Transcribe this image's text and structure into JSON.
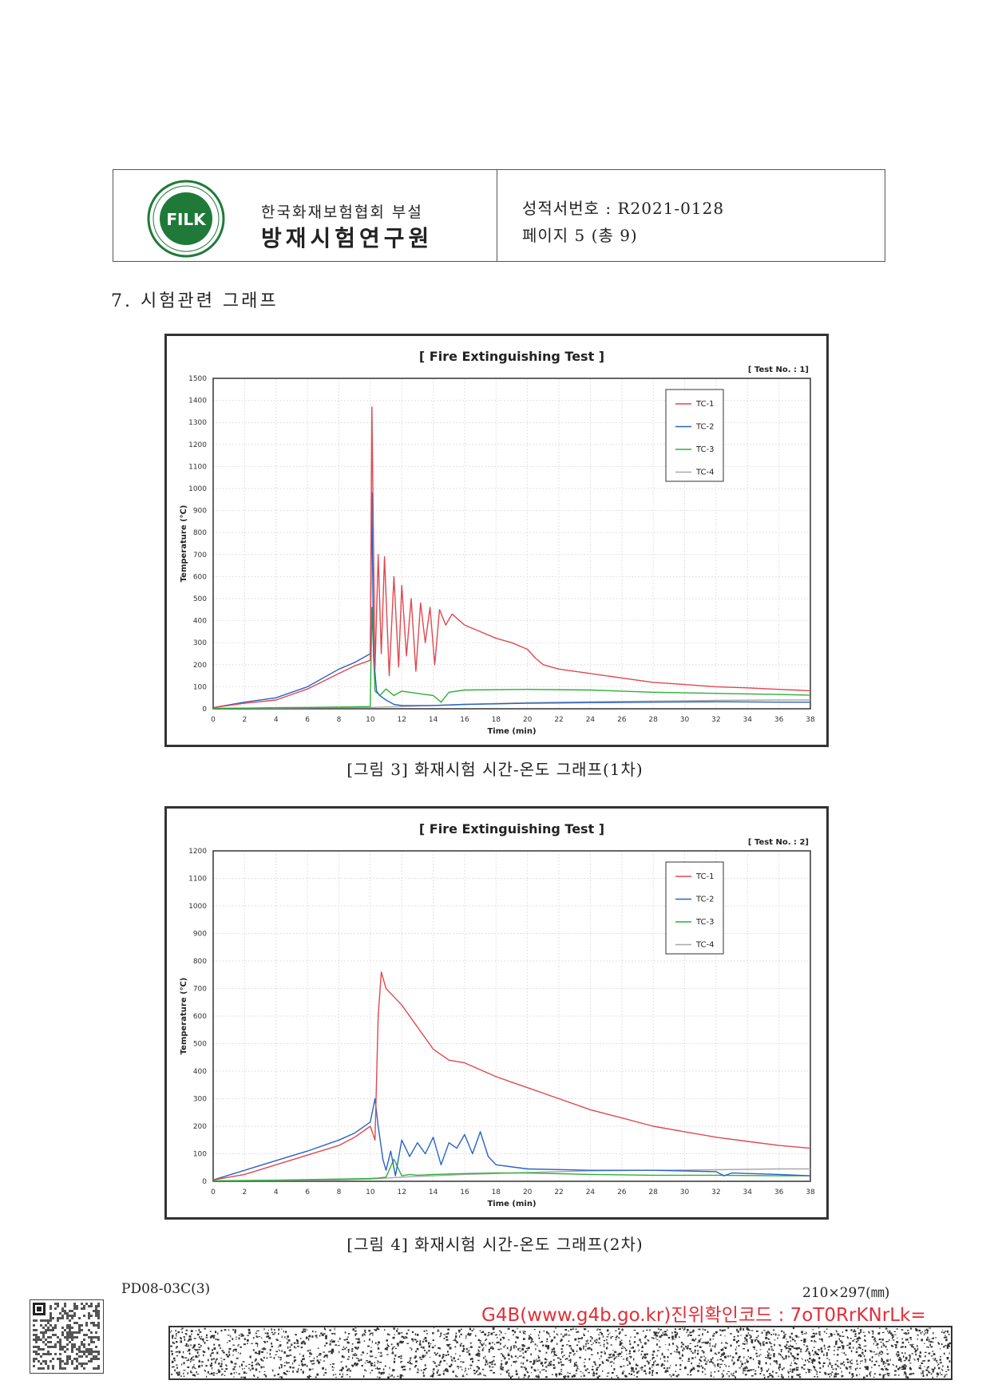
{
  "header": {
    "logo_text": "FILK",
    "logo_ring_text": "방화제품인증 · 방재시험연구원",
    "org_sub": "한국화재보험협회 부설",
    "org_main": "방재시험연구원",
    "report_no_label": "성적서번호 : R2021-0128",
    "page_label": "페이지  5  (총 9)"
  },
  "section_title": "7. 시험관련 그래프",
  "colors": {
    "tc1": "#e0484f",
    "tc2": "#2a62c8",
    "tc3": "#2fae3a",
    "tc4": "#a8a8a8",
    "verify": "#e0303a"
  },
  "chart_data": [
    {
      "type": "line",
      "title": "[ Fire Extinguishing Test ]",
      "test_label": "[ Test No. : 1]",
      "xlabel": "Time (min)",
      "ylabel": "Temperature (℃)",
      "xlim": [
        0,
        38
      ],
      "ylim": [
        0,
        1500
      ],
      "xticks": [
        0,
        2,
        4,
        6,
        8,
        10,
        12,
        14,
        16,
        18,
        20,
        22,
        24,
        26,
        28,
        30,
        32,
        34,
        36,
        38
      ],
      "yticks": [
        0,
        100,
        200,
        300,
        400,
        500,
        600,
        700,
        800,
        900,
        1000,
        1100,
        1200,
        1300,
        1400,
        1500
      ],
      "grid": true,
      "legend_position": "top-right",
      "series": [
        {
          "name": "TC-1",
          "x": [
            0,
            2,
            4,
            6,
            8,
            9,
            10,
            10.1,
            10.3,
            10.5,
            10.7,
            10.9,
            11.2,
            11.5,
            11.8,
            12,
            12.3,
            12.6,
            12.9,
            13.2,
            13.5,
            13.8,
            14.1,
            14.4,
            14.8,
            15.2,
            16,
            17,
            18,
            19,
            20,
            20.5,
            21,
            22,
            24,
            26,
            28,
            30,
            32,
            34,
            36,
            37,
            38
          ],
          "y": [
            5,
            25,
            40,
            90,
            160,
            195,
            220,
            1370,
            180,
            700,
            250,
            690,
            150,
            600,
            190,
            560,
            240,
            500,
            170,
            480,
            300,
            460,
            200,
            450,
            380,
            430,
            380,
            350,
            320,
            300,
            270,
            230,
            200,
            180,
            160,
            140,
            120,
            110,
            100,
            95,
            88,
            85,
            82
          ]
        },
        {
          "name": "TC-2",
          "x": [
            0,
            2,
            4,
            6,
            8,
            9,
            10,
            10.1,
            10.2,
            10.4,
            10.6,
            11,
            11.5,
            12,
            13,
            14,
            16,
            20,
            24,
            28,
            32,
            36,
            38
          ],
          "y": [
            5,
            30,
            50,
            100,
            180,
            210,
            250,
            980,
            240,
            80,
            60,
            40,
            20,
            15,
            15,
            15,
            20,
            25,
            28,
            30,
            32,
            30,
            30
          ]
        },
        {
          "name": "TC-3",
          "x": [
            0,
            2,
            4,
            6,
            8,
            10,
            10.1,
            10.3,
            10.6,
            11,
            11.5,
            12,
            13,
            14,
            14.5,
            15,
            16,
            20,
            24,
            28,
            32,
            36,
            38
          ],
          "y": [
            2,
            3,
            5,
            6,
            8,
            10,
            460,
            80,
            60,
            90,
            60,
            80,
            70,
            60,
            30,
            75,
            85,
            88,
            85,
            75,
            70,
            65,
            62
          ]
        },
        {
          "name": "TC-4",
          "x": [
            0,
            4,
            8,
            10,
            12,
            16,
            20,
            24,
            28,
            32,
            36,
            38
          ],
          "y": [
            2,
            3,
            5,
            6,
            10,
            20,
            28,
            32,
            35,
            38,
            40,
            40
          ]
        }
      ]
    },
    {
      "type": "line",
      "title": "[ Fire Extinguishing Test ]",
      "test_label": "[ Test No. : 2]",
      "xlabel": "Time (min)",
      "ylabel": "Temperature (℃)",
      "xlim": [
        0,
        38
      ],
      "ylim": [
        0,
        1200
      ],
      "xticks": [
        0,
        2,
        4,
        6,
        8,
        10,
        12,
        14,
        16,
        18,
        20,
        22,
        24,
        26,
        28,
        30,
        32,
        34,
        36,
        38
      ],
      "yticks": [
        0,
        100,
        200,
        300,
        400,
        500,
        600,
        700,
        800,
        900,
        1000,
        1100,
        1200
      ],
      "grid": true,
      "legend_position": "top-right",
      "series": [
        {
          "name": "TC-1",
          "x": [
            0,
            2,
            4,
            6,
            8,
            9,
            10,
            10.3,
            10.5,
            10.7,
            11,
            11.5,
            12,
            13,
            14,
            15,
            16,
            18,
            20,
            22,
            24,
            26,
            28,
            30,
            32,
            34,
            36,
            38
          ],
          "y": [
            5,
            25,
            60,
            95,
            130,
            160,
            200,
            150,
            600,
            760,
            700,
            670,
            640,
            560,
            480,
            440,
            430,
            380,
            340,
            300,
            260,
            230,
            200,
            180,
            160,
            145,
            130,
            120
          ]
        },
        {
          "name": "TC-2",
          "x": [
            0,
            2,
            4,
            6,
            8,
            9,
            10,
            10.3,
            10.5,
            10.8,
            11,
            11.3,
            11.6,
            12,
            12.5,
            13,
            13.5,
            14,
            14.5,
            15,
            15.5,
            16,
            16.5,
            17,
            17.5,
            18,
            20,
            24,
            28,
            32,
            32.5,
            33,
            36,
            38
          ],
          "y": [
            5,
            40,
            75,
            110,
            150,
            175,
            215,
            300,
            200,
            80,
            40,
            110,
            20,
            150,
            90,
            140,
            100,
            160,
            60,
            140,
            120,
            170,
            100,
            180,
            90,
            60,
            45,
            40,
            40,
            35,
            20,
            30,
            25,
            20
          ]
        },
        {
          "name": "TC-3",
          "x": [
            0,
            4,
            8,
            10,
            10.5,
            11,
            11.5,
            12,
            12.5,
            13,
            14,
            16,
            18,
            20,
            24,
            28,
            32,
            36,
            38
          ],
          "y": [
            2,
            4,
            8,
            10,
            12,
            15,
            80,
            20,
            25,
            22,
            25,
            28,
            30,
            30,
            25,
            22,
            22,
            20,
            20
          ]
        },
        {
          "name": "TC-4",
          "x": [
            0,
            4,
            8,
            10,
            12,
            16,
            20,
            24,
            28,
            32,
            36,
            38
          ],
          "y": [
            2,
            3,
            5,
            8,
            15,
            25,
            32,
            38,
            40,
            42,
            45,
            45
          ]
        }
      ]
    }
  ],
  "captions": {
    "fig3": "[그림 3] 화재시험 시간-온도 그래프(1차)",
    "fig4": "[그림 4] 화재시험 시간-온도 그래프(2차)"
  },
  "footer": {
    "form_code": "PD08-03C(3)",
    "paper_size": "210×297(㎜)",
    "verify_text": "G4B(www.g4b.go.kr)진위확인코드 : 7oT0RrKNrLk="
  }
}
